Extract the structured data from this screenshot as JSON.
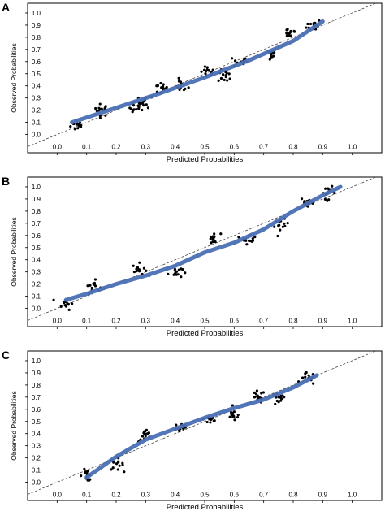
{
  "chart_data": [
    {
      "type": "scatter",
      "panel_label": "A",
      "xlabel": "Predicted Probabilities",
      "ylabel": "Observed Probabilities",
      "xlim": [
        -0.1,
        1.1
      ],
      "ylim": [
        -0.15,
        1.08
      ],
      "x_ticks": [
        "0.0",
        "0.1",
        "0.2",
        "0.3",
        "0.4",
        "0.5",
        "0.6",
        "0.7",
        "0.8",
        "0.9",
        "1.0"
      ],
      "y_ticks": [
        "0.0",
        "0.1",
        "0.2",
        "0.3",
        "0.4",
        "0.5",
        "0.6",
        "0.7",
        "0.8",
        "0.9",
        "1.0"
      ],
      "reference_line": "y = x (dashed)",
      "clusters": [
        [
          0.07,
          0.08
        ],
        [
          0.15,
          0.2
        ],
        [
          0.27,
          0.22
        ],
        [
          0.3,
          0.27
        ],
        [
          0.35,
          0.38
        ],
        [
          0.42,
          0.4
        ],
        [
          0.51,
          0.51
        ],
        [
          0.57,
          0.48
        ],
        [
          0.62,
          0.6
        ],
        [
          0.72,
          0.66
        ],
        [
          0.79,
          0.84
        ],
        [
          0.87,
          0.9
        ]
      ],
      "smooth_curve": {
        "x": [
          0.05,
          0.2,
          0.35,
          0.5,
          0.65,
          0.8,
          0.9
        ],
        "y": [
          0.1,
          0.22,
          0.34,
          0.47,
          0.61,
          0.77,
          0.93
        ]
      },
      "colors": {
        "points": "#000000",
        "curve": "#4a6fb5",
        "reference": "#444444"
      }
    },
    {
      "type": "scatter",
      "panel_label": "B",
      "xlabel": "Predicted Probabilities",
      "ylabel": "Observed Probabilities",
      "xlim": [
        -0.1,
        1.1
      ],
      "ylim": [
        -0.15,
        1.08
      ],
      "x_ticks": [
        "0.0",
        "0.1",
        "0.2",
        "0.3",
        "0.4",
        "0.5",
        "0.6",
        "0.7",
        "0.8",
        "0.9",
        "1.0"
      ],
      "y_ticks": [
        "0.0",
        "0.1",
        "0.2",
        "0.3",
        "0.4",
        "0.5",
        "0.6",
        "0.7",
        "0.8",
        "0.9",
        "1.0"
      ],
      "reference_line": "y = x (dashed)",
      "clusters": [
        [
          0.03,
          0.04
        ],
        [
          0.12,
          0.18
        ],
        [
          0.28,
          0.32
        ],
        [
          0.4,
          0.3
        ],
        [
          0.53,
          0.57
        ],
        [
          0.65,
          0.58
        ],
        [
          0.76,
          0.68
        ],
        [
          0.85,
          0.87
        ],
        [
          0.92,
          0.95
        ]
      ],
      "smooth_curve": {
        "x": [
          0.03,
          0.1,
          0.2,
          0.3,
          0.4,
          0.5,
          0.6,
          0.7,
          0.8,
          0.9,
          0.96
        ],
        "y": [
          0.07,
          0.12,
          0.2,
          0.27,
          0.35,
          0.46,
          0.54,
          0.65,
          0.8,
          0.93,
          1.0
        ]
      },
      "colors": {
        "points": "#000000",
        "curve": "#4a6fb5",
        "reference": "#444444"
      }
    },
    {
      "type": "scatter",
      "panel_label": "C",
      "xlabel": "Predicted Probabilities",
      "ylabel": "Observed Probabilities",
      "xlim": [
        -0.1,
        1.1
      ],
      "ylim": [
        -0.15,
        1.08
      ],
      "x_ticks": [
        "0.0",
        "0.1",
        "0.2",
        "0.3",
        "0.4",
        "0.5",
        "0.6",
        "0.7",
        "0.8",
        "0.9",
        "1.0"
      ],
      "y_ticks": [
        "0.0",
        "0.1",
        "0.2",
        "0.3",
        "0.4",
        "0.5",
        "0.6",
        "0.7",
        "0.8",
        "0.9",
        "1.0"
      ],
      "reference_line": "y = x (dashed)",
      "clusters": [
        [
          0.1,
          0.06
        ],
        [
          0.2,
          0.15
        ],
        [
          0.3,
          0.38
        ],
        [
          0.42,
          0.45
        ],
        [
          0.52,
          0.52
        ],
        [
          0.6,
          0.55
        ],
        [
          0.68,
          0.7
        ],
        [
          0.75,
          0.68
        ],
        [
          0.85,
          0.85
        ]
      ],
      "smooth_curve": {
        "x": [
          0.1,
          0.2,
          0.3,
          0.4,
          0.5,
          0.6,
          0.7,
          0.8,
          0.88
        ],
        "y": [
          0.04,
          0.21,
          0.35,
          0.44,
          0.53,
          0.61,
          0.68,
          0.78,
          0.88
        ]
      },
      "colors": {
        "points": "#000000",
        "curve": "#4a6fb5",
        "reference": "#444444"
      }
    }
  ]
}
